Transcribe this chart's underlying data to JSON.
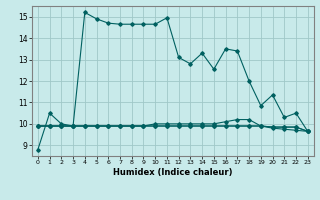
{
  "title": "",
  "xlabel": "Humidex (Indice chaleur)",
  "ylabel": "",
  "bg_color": "#c8eaea",
  "grid_color": "#a0c8c8",
  "line_color": "#006060",
  "xlim": [
    -0.5,
    23.5
  ],
  "ylim": [
    8.5,
    15.5
  ],
  "yticks": [
    9,
    10,
    11,
    12,
    13,
    14,
    15
  ],
  "xticks": [
    0,
    1,
    2,
    3,
    4,
    5,
    6,
    7,
    8,
    9,
    10,
    11,
    12,
    13,
    14,
    15,
    16,
    17,
    18,
    19,
    20,
    21,
    22,
    23
  ],
  "series1": [
    8.8,
    10.5,
    10.0,
    9.9,
    15.2,
    14.9,
    14.7,
    14.65,
    14.65,
    14.65,
    14.65,
    14.95,
    13.1,
    12.8,
    13.3,
    12.55,
    13.5,
    13.4,
    12.0,
    10.85,
    11.35,
    10.3,
    10.5,
    9.65
  ],
  "series2": [
    9.9,
    9.9,
    9.9,
    9.9,
    9.9,
    9.9,
    9.9,
    9.9,
    9.9,
    9.9,
    10.0,
    10.0,
    10.0,
    10.0,
    10.0,
    10.0,
    10.1,
    10.2,
    10.2,
    9.9,
    9.85,
    9.85,
    9.85,
    9.65
  ],
  "series3": [
    9.9,
    9.9,
    9.9,
    9.9,
    9.9,
    9.9,
    9.9,
    9.9,
    9.9,
    9.9,
    9.9,
    9.9,
    9.9,
    9.9,
    9.9,
    9.9,
    9.9,
    9.9,
    9.9,
    9.9,
    9.8,
    9.75,
    9.7,
    9.65
  ],
  "series4": [
    9.9,
    9.9,
    9.9,
    9.9,
    9.9,
    9.9,
    9.9,
    9.9,
    9.9,
    9.9,
    9.9,
    9.9,
    9.9,
    9.9,
    9.9,
    9.9,
    9.9,
    9.9,
    9.9,
    9.9,
    9.85,
    9.85,
    9.85,
    9.65
  ]
}
